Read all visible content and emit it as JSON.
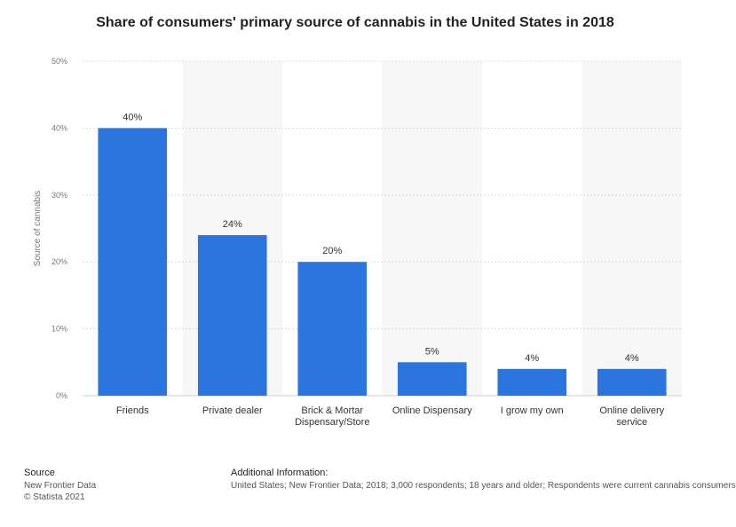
{
  "title": "Share of consumers' primary source of cannabis in the United States in 2018",
  "chart_data": {
    "type": "bar",
    "title": "Share of consumers' primary source of cannabis in the United States in 2018",
    "categories": [
      "Friends",
      "Private dealer",
      "Brick & Mortar Dispensary/Store",
      "Online Dispensary",
      "I grow my own",
      "Online delivery service"
    ],
    "category_lines": [
      [
        "Friends"
      ],
      [
        "Private dealer"
      ],
      [
        "Brick & Mortar",
        "Dispensary/Store"
      ],
      [
        "Online Dispensary"
      ],
      [
        "I grow my own"
      ],
      [
        "Online delivery",
        "service"
      ]
    ],
    "values": [
      40,
      24,
      20,
      5,
      4,
      4
    ],
    "value_labels": [
      "40%",
      "24%",
      "20%",
      "5%",
      "4%",
      "4%"
    ],
    "ylabel": "Source of cannabis",
    "xlabel": "",
    "ylim": [
      0,
      50
    ],
    "yticks": [
      0,
      10,
      20,
      30,
      40,
      50
    ],
    "ytick_labels": [
      "0%",
      "10%",
      "20%",
      "30%",
      "40%",
      "50%"
    ],
    "bar_color": "#2a75de",
    "grid": true
  },
  "footer": {
    "source_heading": "Source",
    "source_lines": [
      "New Frontier Data",
      "© Statista 2021"
    ],
    "info_heading": "Additional Information:",
    "info_text": "United States; New Frontier Data; 2018; 3,000 respondents; 18 years and older; Respondents were current cannabis consumers"
  }
}
